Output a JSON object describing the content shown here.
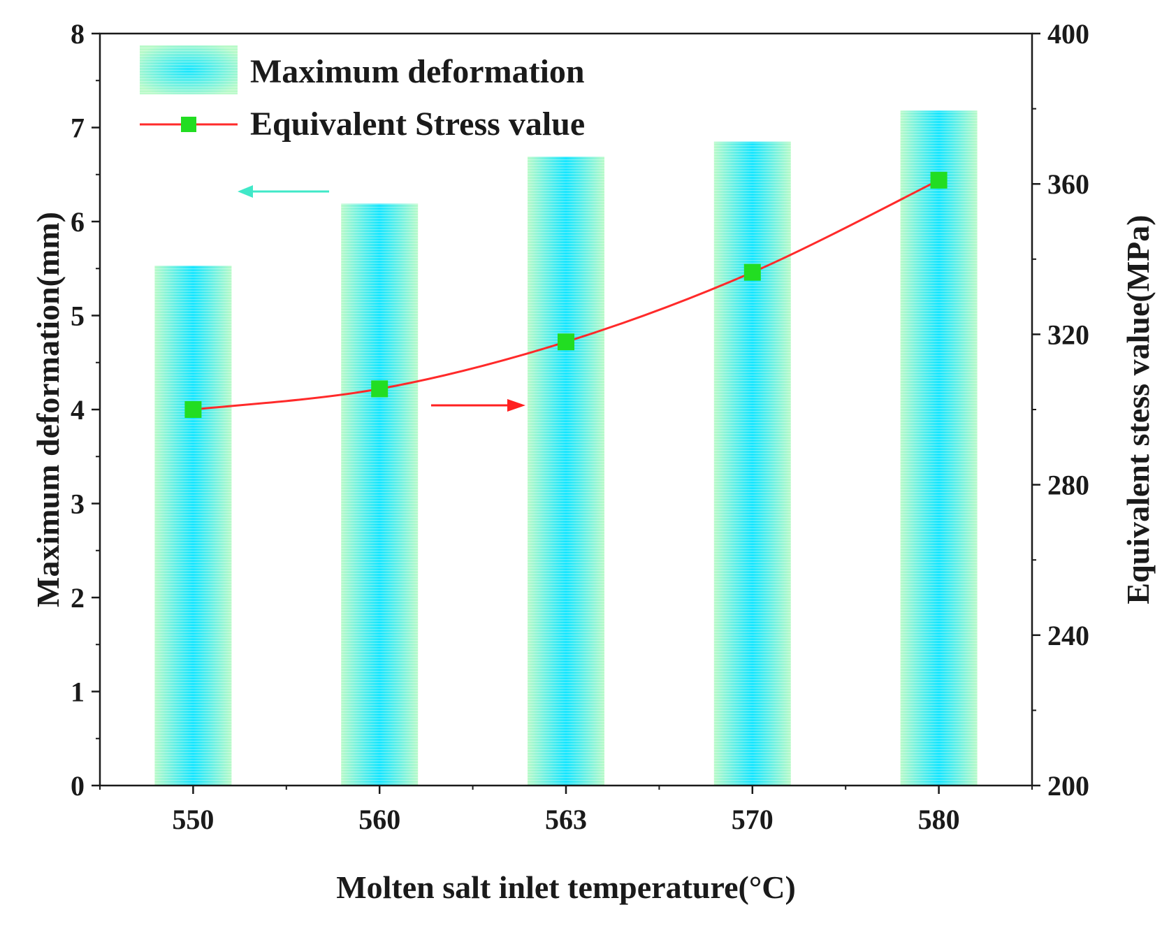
{
  "chart_data": {
    "type": "bar+line",
    "categories": [
      "550",
      "560",
      "563",
      "570",
      "580"
    ],
    "series": [
      {
        "name": "Maximum deformation",
        "kind": "bar",
        "axis": "left",
        "values": [
          5.53,
          6.19,
          6.69,
          6.85,
          7.18
        ]
      },
      {
        "name": "Equivalent Stress value",
        "kind": "line",
        "axis": "right",
        "values": [
          300.0,
          305.5,
          318.0,
          336.5,
          361.0
        ]
      }
    ],
    "xlabel": "Molten salt inlet temperature(°C)",
    "ylabel_left": "Maximum deformation(mm)",
    "ylabel_right": "Equivalent stess value(MPa)",
    "ylim_left": [
      0,
      8
    ],
    "ylim_right": [
      200,
      400
    ],
    "yticks_left": [
      "0",
      "1",
      "2",
      "3",
      "4",
      "5",
      "6",
      "7",
      "8"
    ],
    "yticks_right": [
      "200",
      "240",
      "280",
      "320",
      "360",
      "400"
    ],
    "legend": {
      "placement": "top-left",
      "entries": [
        "Maximum deformation",
        "Equivalent Stress value"
      ]
    },
    "colors": {
      "bar_edge": "#b8fac8",
      "bar_center": "#14e6ff",
      "line": "#ff2a2a",
      "marker": "#22dd22",
      "left_arrow": "#40e8c8",
      "right_arrow": "#ff2020",
      "axis": "#1a1a1a"
    }
  }
}
